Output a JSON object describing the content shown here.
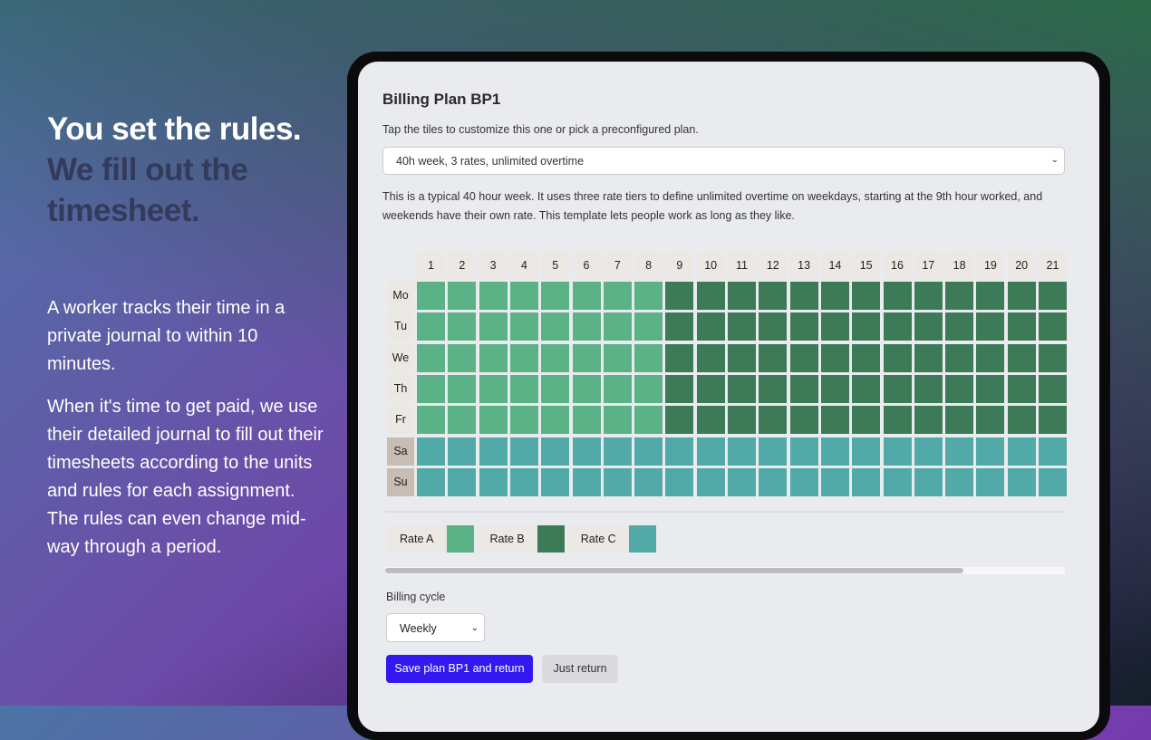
{
  "hero": {
    "line1": "You set the rules.",
    "line2": "We fill out the timesheet.",
    "para1": "A worker tracks their time in a private journal to within 10 minutes.",
    "para2": "When it's time to get paid, we use their detailed journal to fill out their timesheets according to the units and rules for each assignment. The rules can even change mid-way through a period."
  },
  "plan": {
    "title": "Billing Plan BP1",
    "subtitle": "Tap the tiles to customize this one or pick a preconfigured plan.",
    "preset": "40h week, 3 rates, unlimited overtime",
    "description": "This is a typical 40 hour week. It uses three rate tiers to define unlimited overtime on weekdays, starting at the 9th hour worked, and weekends have their own rate. This template lets people work as long as they like."
  },
  "grid": {
    "hours": [
      "1",
      "2",
      "3",
      "4",
      "5",
      "6",
      "7",
      "8",
      "9",
      "10",
      "11",
      "12",
      "13",
      "14",
      "15",
      "16",
      "17",
      "18",
      "19",
      "20",
      "21"
    ],
    "rows": [
      {
        "day": "Mo",
        "rates": "AAAAAAAABBBBBBBBBBBBB"
      },
      {
        "day": "Tu",
        "rates": "AAAAAAAABBBBBBBBBBBBB"
      },
      {
        "day": "We",
        "rates": "AAAAAAAABBBBBBBBBBBBB"
      },
      {
        "day": "Th",
        "rates": "AAAAAAAABBBBBBBBBBBBB"
      },
      {
        "day": "Fr",
        "rates": "AAAAAAAABBBBBBBBBBBBB"
      },
      {
        "day": "Sa",
        "rates": "CCCCCCCCCCCCCCCCCCCCC"
      },
      {
        "day": "Su",
        "rates": "CCCCCCCCCCCCCCCCCCCCC"
      }
    ]
  },
  "rates": [
    {
      "key": "A",
      "label": "Rate A",
      "color": "#5ab286"
    },
    {
      "key": "B",
      "label": "Rate B",
      "color": "#3c7a58"
    },
    {
      "key": "C",
      "label": "Rate C",
      "color": "#52aaa8"
    }
  ],
  "scroll": {
    "position_fraction": 0.85
  },
  "billing": {
    "label": "Billing cycle",
    "value": "Weekly"
  },
  "actions": {
    "save": "Save plan BP1 and return",
    "back": "Just return"
  }
}
